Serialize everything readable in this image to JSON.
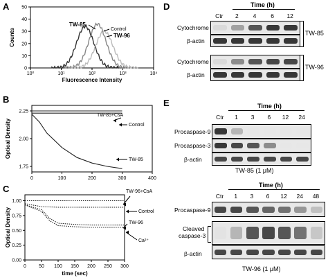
{
  "panels": {
    "A": {
      "letter": "A",
      "chart_data": {
        "type": "histogram",
        "xlabel": "Fluorescence Intensity",
        "ylabel": "Counts",
        "x_scale": "log",
        "x_ticks": [
          "10⁰",
          "10¹",
          "10²",
          "10³",
          "10⁴"
        ],
        "y_ticks": [
          "0",
          "10",
          "20",
          "30",
          "40",
          "50"
        ],
        "ylim": [
          0,
          50
        ],
        "series": [
          {
            "name": "Control",
            "peak_x": 150,
            "peak_y": 36
          },
          {
            "name": "TW-85",
            "peak_x": 60,
            "peak_y": 34
          },
          {
            "name": "TW-96",
            "peak_x": 250,
            "peak_y": 30
          }
        ],
        "labels": [
          "TW-85",
          "Control",
          "TW-96"
        ]
      }
    },
    "B": {
      "letter": "B",
      "chart_data": {
        "type": "line",
        "xlabel": "",
        "ylabel": "Optical Density",
        "xlim": [
          0,
          400
        ],
        "ylim": [
          1.7,
          2.3
        ],
        "x_ticks": [
          "0",
          "100",
          "200",
          "300",
          "400"
        ],
        "y_ticks": [
          "1.75",
          "2.00",
          "2.25"
        ],
        "series": [
          {
            "name": "TW-85+CsA",
            "x": [
              0,
              50,
              100,
              150,
              200,
              250,
              300
            ],
            "y": [
              2.25,
              2.25,
              2.25,
              2.25,
              2.25,
              2.25,
              2.25
            ]
          },
          {
            "name": "Control",
            "x": [
              0,
              50,
              100,
              150,
              200,
              250,
              300
            ],
            "y": [
              2.23,
              2.23,
              2.23,
              2.23,
              2.23,
              2.23,
              2.23
            ]
          },
          {
            "name": "TW-85",
            "x": [
              0,
              25,
              50,
              100,
              150,
              200,
              250,
              300
            ],
            "y": [
              2.22,
              2.15,
              2.05,
              1.92,
              1.83,
              1.78,
              1.75,
              1.73
            ]
          }
        ]
      }
    },
    "C": {
      "letter": "C",
      "chart_data": {
        "type": "line",
        "xlabel": "time (sec)",
        "ylabel": "Optical Density",
        "xlim": [
          0,
          300
        ],
        "ylim": [
          0,
          1.1
        ],
        "x_ticks": [
          "0",
          "50",
          "100",
          "150",
          "200",
          "250",
          "300"
        ],
        "y_ticks": [
          "0.00",
          "0.25",
          "0.50",
          "0.75",
          "1.00"
        ],
        "series": [
          {
            "name": "TW-96+CsA",
            "x": [
              0,
              50,
              100,
              150,
              200,
              250,
              300
            ],
            "y": [
              1.0,
              1.0,
              1.0,
              1.0,
              1.0,
              1.0,
              1.0
            ]
          },
          {
            "name": "Control",
            "x": [
              0,
              50,
              100,
              150,
              200,
              250,
              300
            ],
            "y": [
              0.95,
              0.9,
              0.89,
              0.89,
              0.89,
              0.89,
              0.89
            ]
          },
          {
            "name": "TW-96",
            "x": [
              0,
              50,
              75,
              100,
              150,
              200,
              250,
              300
            ],
            "y": [
              0.93,
              0.85,
              0.7,
              0.62,
              0.6,
              0.59,
              0.59,
              0.59
            ]
          },
          {
            "name": "Ca²⁺",
            "x": [
              0,
              50,
              75,
              100,
              150,
              200,
              250,
              300
            ],
            "y": [
              0.93,
              0.82,
              0.66,
              0.58,
              0.56,
              0.55,
              0.55,
              0.55
            ]
          }
        ]
      }
    },
    "D": {
      "letter": "D",
      "time_title": "Time (h)",
      "lanes": [
        "Ctr",
        "2",
        "4",
        "6",
        "12"
      ],
      "rows": [
        "Cytochrome c",
        "β-actin",
        "Cytochrome c",
        "β-actin"
      ],
      "groups": [
        "TW-85",
        "TW-96"
      ],
      "intensity": {
        "cyto_85": [
          0.15,
          0.5,
          0.8,
          0.9,
          0.9
        ],
        "actin_85": [
          0.9,
          0.9,
          0.9,
          0.9,
          0.9
        ],
        "cyto_96": [
          0.15,
          0.6,
          0.8,
          0.85,
          0.85
        ],
        "actin_96": [
          0.9,
          0.9,
          0.9,
          0.9,
          0.9
        ]
      }
    },
    "E": {
      "letter": "E",
      "top": {
        "time_title": "Time (h)",
        "lanes": [
          "Ctr",
          "1",
          "3",
          "6",
          "12",
          "24"
        ],
        "rows": [
          "Procaspase-9",
          "Procaspase-3",
          "β-actin"
        ],
        "caption": "TW-85 (1 μM)",
        "intensity": {
          "procasp9": [
            0.9,
            0.4,
            0.0,
            0.0,
            0.0,
            0.0
          ],
          "procasp3": [
            0.9,
            0.85,
            0.8,
            0.6,
            0.0,
            0.0
          ],
          "actin": [
            0.85,
            0.85,
            0.85,
            0.85,
            0.85,
            0.85
          ]
        }
      },
      "bottom": {
        "time_title": "Time (h)",
        "lanes": [
          "Ctr",
          "1",
          "3",
          "6",
          "12",
          "24",
          "48"
        ],
        "rows": [
          "Procaspase-9",
          "Cleaved caspase-3",
          "β-actin"
        ],
        "cleaved_line1": "Cleaved",
        "cleaved_line2": "caspase-3",
        "caption": "TW-96 (1 μM)",
        "intensity": {
          "procasp9": [
            0.85,
            0.85,
            0.8,
            0.75,
            0.7,
            0.55,
            0.35
          ],
          "cleaved": [
            0.05,
            0.4,
            0.8,
            0.85,
            0.8,
            0.7,
            0.3
          ],
          "actin": [
            0.85,
            0.85,
            0.85,
            0.85,
            0.85,
            0.85,
            0.85
          ]
        }
      }
    }
  }
}
